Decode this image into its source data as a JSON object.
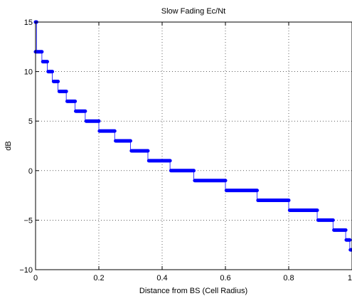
{
  "chart_data": {
    "type": "line",
    "title": "Slow Fading Ec/Nt",
    "xlabel": "Distance from BS (Cell Radius)",
    "ylabel": "dB",
    "xlim": [
      0,
      1
    ],
    "ylim": [
      -10,
      15
    ],
    "xticks": [
      0,
      0.2,
      0.4,
      0.6,
      0.8,
      1
    ],
    "xtick_labels": [
      "0",
      "0.2",
      "0.4",
      "0.6",
      "0.8",
      "1"
    ],
    "yticks": [
      -10,
      -5,
      0,
      5,
      10,
      15
    ],
    "ytick_labels": [
      "−10",
      "−5",
      "0",
      "5",
      "10",
      "15"
    ],
    "grid": true,
    "series": [
      {
        "color": "#0000ff",
        "steps": [
          {
            "y": 15,
            "x_start": 0.0,
            "x_end": 0.003
          },
          {
            "y": 12,
            "x_start": 0.0,
            "x_end": 0.02
          },
          {
            "y": 11,
            "x_start": 0.023,
            "x_end": 0.037
          },
          {
            "y": 10,
            "x_start": 0.04,
            "x_end": 0.053
          },
          {
            "y": 9,
            "x_start": 0.057,
            "x_end": 0.071
          },
          {
            "y": 8,
            "x_start": 0.075,
            "x_end": 0.097
          },
          {
            "y": 7,
            "x_start": 0.1,
            "x_end": 0.125
          },
          {
            "y": 6,
            "x_start": 0.127,
            "x_end": 0.157
          },
          {
            "y": 5,
            "x_start": 0.16,
            "x_end": 0.2
          },
          {
            "y": 4,
            "x_start": 0.202,
            "x_end": 0.25
          },
          {
            "y": 3,
            "x_start": 0.253,
            "x_end": 0.3
          },
          {
            "y": 2,
            "x_start": 0.303,
            "x_end": 0.355
          },
          {
            "y": 1,
            "x_start": 0.358,
            "x_end": 0.425
          },
          {
            "y": 0,
            "x_start": 0.428,
            "x_end": 0.5
          },
          {
            "y": -1,
            "x_start": 0.503,
            "x_end": 0.6
          },
          {
            "y": -2,
            "x_start": 0.603,
            "x_end": 0.7
          },
          {
            "y": -3,
            "x_start": 0.703,
            "x_end": 0.8
          },
          {
            "y": -4,
            "x_start": 0.803,
            "x_end": 0.89
          },
          {
            "y": -5,
            "x_start": 0.893,
            "x_end": 0.94
          },
          {
            "y": -6,
            "x_start": 0.943,
            "x_end": 0.98
          },
          {
            "y": -7,
            "x_start": 0.982,
            "x_end": 0.993
          },
          {
            "y": -8,
            "x_start": 0.995,
            "x_end": 1.0
          }
        ]
      }
    ]
  }
}
